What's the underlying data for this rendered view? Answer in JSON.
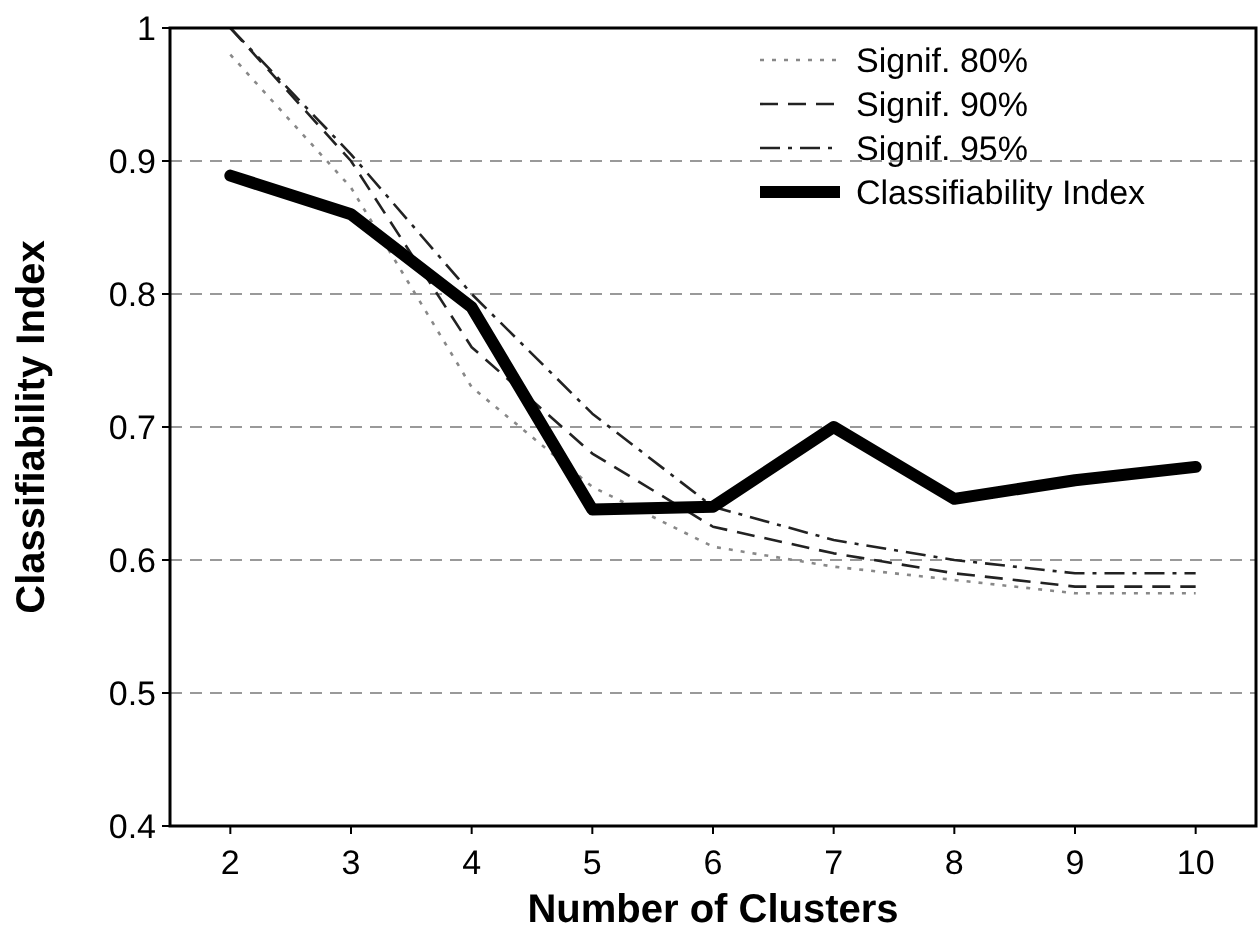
{
  "chart_data": {
    "type": "line",
    "xlabel": "Number of Clusters",
    "ylabel": "Classifiability Index",
    "categories": [
      "2",
      "3",
      "4",
      "5",
      "6",
      "7",
      "8",
      "9",
      "10"
    ],
    "ylim": [
      0.4,
      1
    ],
    "yticks": [
      0.4,
      0.5,
      0.6,
      0.7,
      0.8,
      0.9,
      1
    ],
    "grid": "y",
    "legend": "top right",
    "marker": "none",
    "series": [
      {
        "name": "Signif. 80%",
        "color": "#888888",
        "line_style": "dotted",
        "values": [
          0.98,
          0.88,
          0.73,
          0.655,
          0.61,
          0.595,
          0.585,
          0.575,
          0.575
        ]
      },
      {
        "name": "Signif. 90%",
        "color": "#222222",
        "line_style": "dashed",
        "values": [
          1.0,
          0.9,
          0.76,
          0.68,
          0.625,
          0.605,
          0.59,
          0.58,
          0.58
        ]
      },
      {
        "name": "Signif. 95%",
        "color": "#222222",
        "line_style": "dashdot",
        "values": [
          1.0,
          0.905,
          0.8,
          0.71,
          0.64,
          0.615,
          0.6,
          0.59,
          0.59
        ]
      },
      {
        "name": "Classifiability Index",
        "color": "#000000",
        "line_style": "solid",
        "values": [
          0.889,
          0.86,
          0.79,
          0.638,
          0.64,
          0.7,
          0.646,
          0.66,
          0.67
        ]
      }
    ]
  }
}
